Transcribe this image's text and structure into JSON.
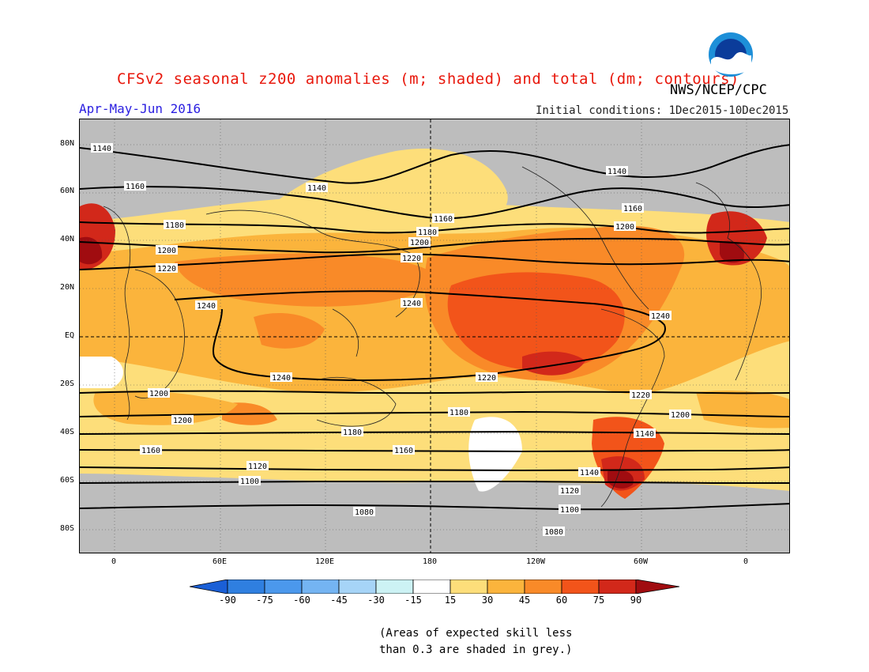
{
  "header": {
    "title": "CFSv2 seasonal z200 anomalies (m; shaded) and total (dm; contours)",
    "agency": "NWS/NCEP/CPC",
    "season": "Apr-May-Jun 2016",
    "initial_conditions": "Initial conditions: 1Dec2015-10Dec2015",
    "logo_text": "NOAA"
  },
  "map": {
    "projection": "cylindrical equidistant, 0 to 360E wrap",
    "lat_labels": [
      "80N",
      "60N",
      "40N",
      "20N",
      "EQ",
      "20S",
      "40S",
      "60S",
      "80S"
    ],
    "lon_labels": [
      "0",
      "60E",
      "120E",
      "180",
      "120W",
      "60W",
      "0"
    ],
    "contour_labels": [
      "1140",
      "1140",
      "1140",
      "1160",
      "1160",
      "1160",
      "1180",
      "1180",
      "1200",
      "1200",
      "1200",
      "1220",
      "1220",
      "1240",
      "1240",
      "1240",
      "1240",
      "1220",
      "1200",
      "1220",
      "1200",
      "1180",
      "1200",
      "1160",
      "1180",
      "1140",
      "1160",
      "1120",
      "1100",
      "1140",
      "1120",
      "1080",
      "1100",
      "1080"
    ],
    "colors": {
      "grey_mask": "#bdbdbd",
      "white_band": "#ffffff",
      "pos_15_30": "#fdde7a",
      "pos_30_45": "#fbb43c",
      "pos_45_60": "#f98a28",
      "pos_60_75": "#f2541a",
      "pos_75_90": "#d2281a",
      "pos_90_plus": "#a00c10",
      "neg_fill": "#2f7fe0"
    }
  },
  "colorbar": {
    "labels": [
      "-90",
      "-75",
      "-60",
      "-45",
      "-30",
      "-15",
      "15",
      "30",
      "45",
      "60",
      "75",
      "90"
    ],
    "colors": [
      "#1a5fd6",
      "#2f7fe0",
      "#4b98ec",
      "#74b4f2",
      "#a6d4f7",
      "#ccf2f4",
      "#ffffff",
      "#fdde7a",
      "#fbb43c",
      "#f98a28",
      "#f2541a",
      "#d2281a",
      "#a00c10"
    ]
  },
  "footnote": {
    "line1": "(Areas of expected skill less",
    "line2": "than 0.3 are shaded in grey.)"
  }
}
